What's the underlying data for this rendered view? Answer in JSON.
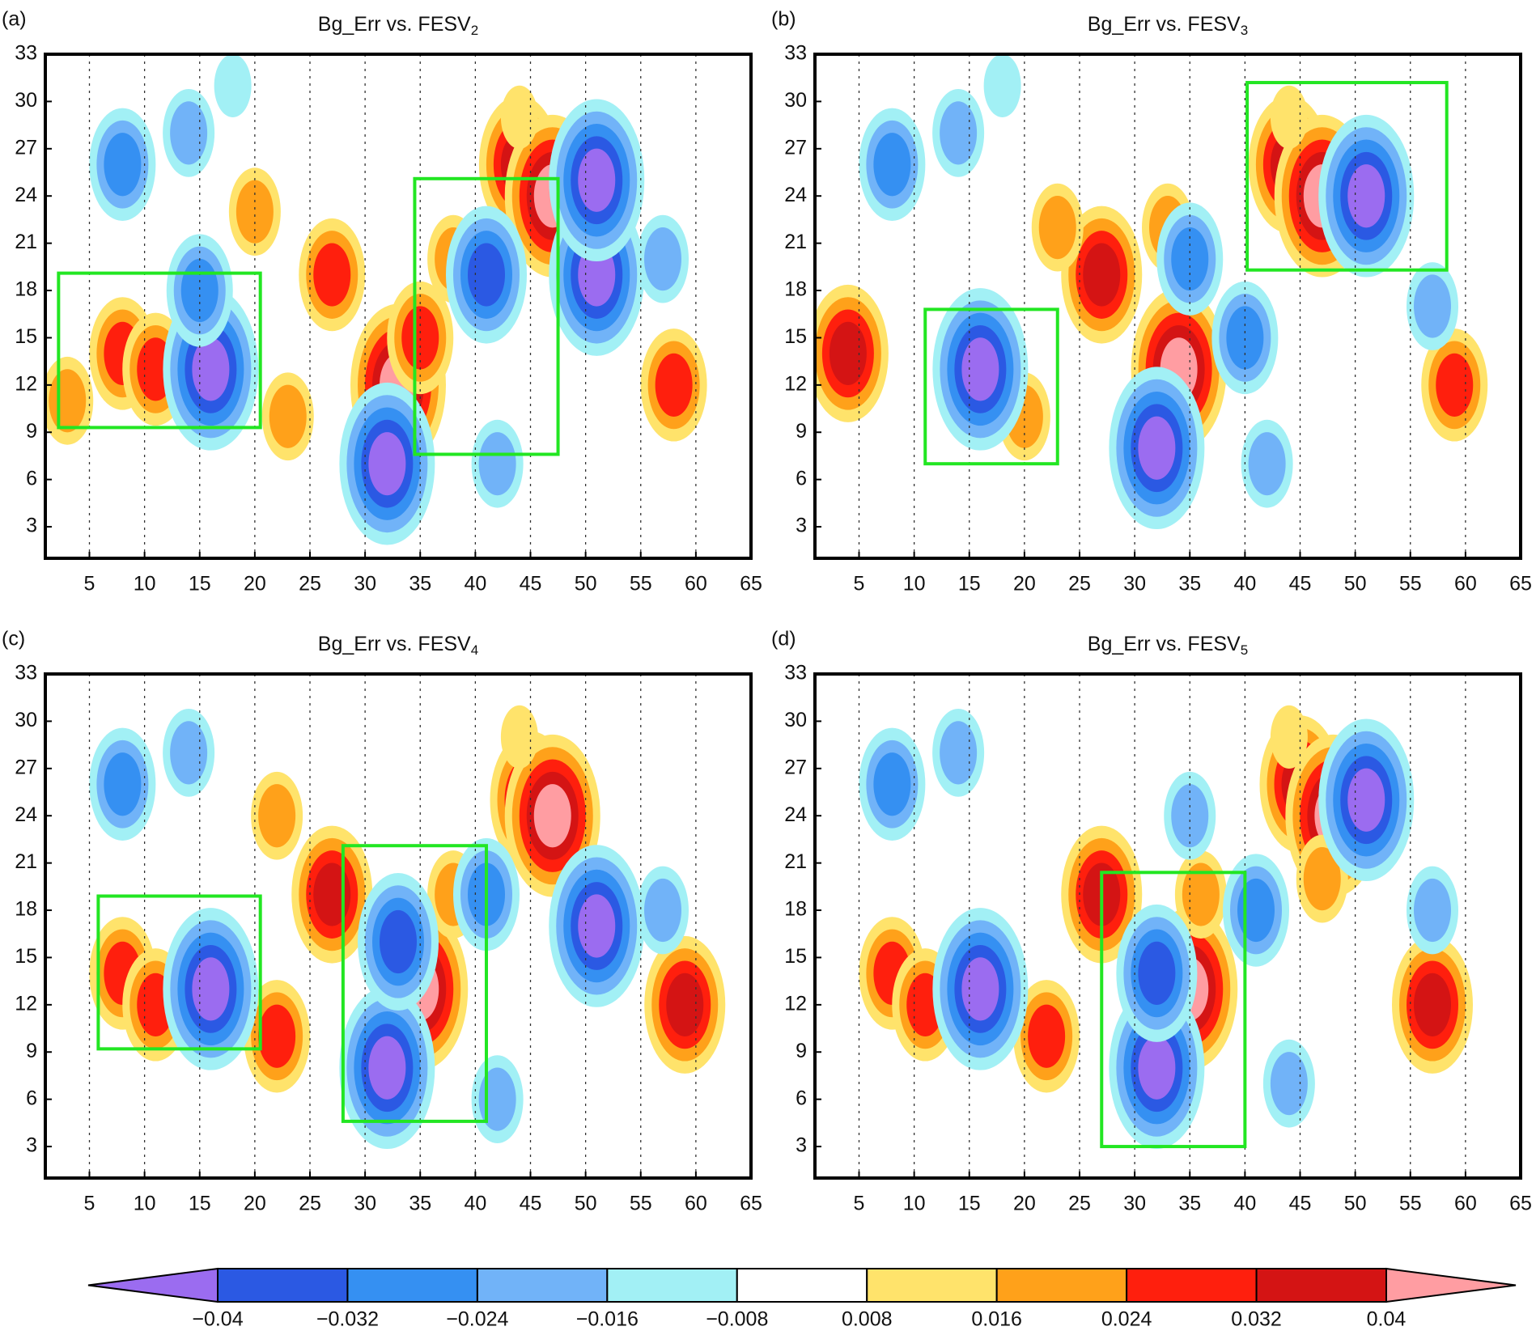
{
  "chart_data": [
    {
      "type": "contour",
      "panel_label": "(a)",
      "title": "Bg_Err vs. FESV",
      "title_subscript": "2",
      "xlim": [
        1,
        65
      ],
      "ylim": [
        1,
        33
      ],
      "xticks": [
        5,
        10,
        15,
        20,
        25,
        30,
        35,
        40,
        45,
        50,
        55,
        60,
        65
      ],
      "yticks": [
        3,
        6,
        9,
        12,
        15,
        18,
        21,
        24,
        27,
        30,
        33
      ],
      "grid": true,
      "field": [
        {
          "x": 8,
          "y": 14,
          "value": 0.028
        },
        {
          "x": 11,
          "y": 13,
          "value": 0.028
        },
        {
          "x": 27,
          "y": 19,
          "value": 0.028
        },
        {
          "x": 33,
          "y": 12,
          "value": 0.045
        },
        {
          "x": 35,
          "y": 15,
          "value": 0.028
        },
        {
          "x": 44,
          "y": 26,
          "value": 0.035
        },
        {
          "x": 47,
          "y": 24,
          "value": 0.045
        },
        {
          "x": 58,
          "y": 12,
          "value": 0.028
        },
        {
          "x": 20,
          "y": 23,
          "value": 0.02
        },
        {
          "x": 38,
          "y": 20,
          "value": 0.02
        },
        {
          "x": 44,
          "y": 29,
          "value": 0.012
        },
        {
          "x": 23,
          "y": 10,
          "value": 0.02
        },
        {
          "x": 3,
          "y": 11,
          "value": 0.02
        },
        {
          "x": 16,
          "y": 13,
          "value": -0.045
        },
        {
          "x": 15,
          "y": 18,
          "value": -0.028
        },
        {
          "x": 32,
          "y": 7,
          "value": -0.045
        },
        {
          "x": 51,
          "y": 19,
          "value": -0.045
        },
        {
          "x": 51,
          "y": 25,
          "value": -0.045
        },
        {
          "x": 41,
          "y": 19,
          "value": -0.036
        },
        {
          "x": 8,
          "y": 26,
          "value": -0.028
        },
        {
          "x": 14,
          "y": 28,
          "value": -0.02
        },
        {
          "x": 18,
          "y": 31,
          "value": -0.012
        },
        {
          "x": 57,
          "y": 20,
          "value": -0.02
        },
        {
          "x": 42,
          "y": 7,
          "value": -0.02
        }
      ],
      "boxes": [
        {
          "x": [
            2.2,
            20.5
          ],
          "y": [
            9.3,
            19.1
          ]
        },
        {
          "x": [
            34.5,
            47.5
          ],
          "y": [
            7.6,
            25.1
          ]
        }
      ],
      "box_color": "#22e622"
    },
    {
      "type": "contour",
      "panel_label": "(b)",
      "title": "Bg_Err vs. FESV",
      "title_subscript": "3",
      "xlim": [
        1,
        65
      ],
      "ylim": [
        1,
        33
      ],
      "xticks": [
        5,
        10,
        15,
        20,
        25,
        30,
        35,
        40,
        45,
        50,
        55,
        60,
        65
      ],
      "yticks": [
        3,
        6,
        9,
        12,
        15,
        18,
        21,
        24,
        27,
        30,
        33
      ],
      "grid": true,
      "field": [
        {
          "x": 4,
          "y": 14,
          "value": 0.035
        },
        {
          "x": 27,
          "y": 19,
          "value": 0.035
        },
        {
          "x": 34,
          "y": 13,
          "value": 0.045
        },
        {
          "x": 44,
          "y": 26,
          "value": 0.035
        },
        {
          "x": 47,
          "y": 24,
          "value": 0.045
        },
        {
          "x": 59,
          "y": 12,
          "value": 0.028
        },
        {
          "x": 20,
          "y": 10,
          "value": 0.02
        },
        {
          "x": 23,
          "y": 22,
          "value": 0.02
        },
        {
          "x": 33,
          "y": 22,
          "value": 0.02
        },
        {
          "x": 44,
          "y": 29,
          "value": 0.012
        },
        {
          "x": 16,
          "y": 13,
          "value": -0.045
        },
        {
          "x": 32,
          "y": 8,
          "value": -0.045
        },
        {
          "x": 51,
          "y": 24,
          "value": -0.045
        },
        {
          "x": 40,
          "y": 15,
          "value": -0.028
        },
        {
          "x": 8,
          "y": 26,
          "value": -0.028
        },
        {
          "x": 14,
          "y": 28,
          "value": -0.02
        },
        {
          "x": 18,
          "y": 31,
          "value": -0.012
        },
        {
          "x": 57,
          "y": 17,
          "value": -0.02
        },
        {
          "x": 42,
          "y": 7,
          "value": -0.02
        },
        {
          "x": 35,
          "y": 20,
          "value": -0.028
        }
      ],
      "boxes": [
        {
          "x": [
            11,
            23
          ],
          "y": [
            7,
            16.8
          ]
        },
        {
          "x": [
            40.2,
            58.3
          ],
          "y": [
            19.3,
            31.2
          ]
        }
      ],
      "box_color": "#22e622"
    },
    {
      "type": "contour",
      "panel_label": "(c)",
      "title": "Bg_Err vs. FESV",
      "title_subscript": "4",
      "xlim": [
        1,
        65
      ],
      "ylim": [
        1,
        33
      ],
      "xticks": [
        5,
        10,
        15,
        20,
        25,
        30,
        35,
        40,
        45,
        50,
        55,
        60,
        65
      ],
      "yticks": [
        3,
        6,
        9,
        12,
        15,
        18,
        21,
        24,
        27,
        30,
        33
      ],
      "grid": true,
      "field": [
        {
          "x": 8,
          "y": 14,
          "value": 0.028
        },
        {
          "x": 11,
          "y": 12,
          "value": 0.028
        },
        {
          "x": 27,
          "y": 19,
          "value": 0.035
        },
        {
          "x": 35,
          "y": 13,
          "value": 0.045
        },
        {
          "x": 45,
          "y": 25,
          "value": 0.035
        },
        {
          "x": 47,
          "y": 24,
          "value": 0.045
        },
        {
          "x": 59,
          "y": 12,
          "value": 0.035
        },
        {
          "x": 22,
          "y": 10,
          "value": 0.028
        },
        {
          "x": 22,
          "y": 24,
          "value": 0.02
        },
        {
          "x": 38,
          "y": 19,
          "value": 0.02
        },
        {
          "x": 44,
          "y": 29,
          "value": 0.012
        },
        {
          "x": 16,
          "y": 13,
          "value": -0.045
        },
        {
          "x": 32,
          "y": 8,
          "value": -0.045
        },
        {
          "x": 51,
          "y": 17,
          "value": -0.045
        },
        {
          "x": 33,
          "y": 16,
          "value": -0.036
        },
        {
          "x": 8,
          "y": 26,
          "value": -0.028
        },
        {
          "x": 14,
          "y": 28,
          "value": -0.02
        },
        {
          "x": 57,
          "y": 18,
          "value": -0.02
        },
        {
          "x": 42,
          "y": 6,
          "value": -0.02
        },
        {
          "x": 41,
          "y": 19,
          "value": -0.028
        }
      ],
      "boxes": [
        {
          "x": [
            5.8,
            20.5
          ],
          "y": [
            9.2,
            18.9
          ]
        },
        {
          "x": [
            28,
            41
          ],
          "y": [
            4.6,
            22.1
          ]
        }
      ],
      "box_color": "#22e622"
    },
    {
      "type": "contour",
      "panel_label": "(d)",
      "title": "Bg_Err vs. FESV",
      "title_subscript": "5",
      "xlim": [
        1,
        65
      ],
      "ylim": [
        1,
        33
      ],
      "xticks": [
        5,
        10,
        15,
        20,
        25,
        30,
        35,
        40,
        45,
        50,
        55,
        60,
        65
      ],
      "yticks": [
        3,
        6,
        9,
        12,
        15,
        18,
        21,
        24,
        27,
        30,
        33
      ],
      "grid": true,
      "field": [
        {
          "x": 8,
          "y": 14,
          "value": 0.028
        },
        {
          "x": 11,
          "y": 12,
          "value": 0.028
        },
        {
          "x": 27,
          "y": 19,
          "value": 0.035
        },
        {
          "x": 35,
          "y": 13,
          "value": 0.045
        },
        {
          "x": 45,
          "y": 26,
          "value": 0.035
        },
        {
          "x": 48,
          "y": 24,
          "value": 0.045
        },
        {
          "x": 57,
          "y": 12,
          "value": 0.035
        },
        {
          "x": 22,
          "y": 10,
          "value": 0.028
        },
        {
          "x": 44,
          "y": 29,
          "value": 0.012
        },
        {
          "x": 36,
          "y": 19,
          "value": 0.02
        },
        {
          "x": 47,
          "y": 20,
          "value": 0.02
        },
        {
          "x": 16,
          "y": 13,
          "value": -0.045
        },
        {
          "x": 32,
          "y": 8,
          "value": -0.045
        },
        {
          "x": 51,
          "y": 25,
          "value": -0.045
        },
        {
          "x": 32,
          "y": 14,
          "value": -0.036
        },
        {
          "x": 8,
          "y": 26,
          "value": -0.028
        },
        {
          "x": 14,
          "y": 28,
          "value": -0.02
        },
        {
          "x": 57,
          "y": 18,
          "value": -0.02
        },
        {
          "x": 44,
          "y": 7,
          "value": -0.02
        },
        {
          "x": 41,
          "y": 18,
          "value": -0.028
        },
        {
          "x": 35,
          "y": 24,
          "value": -0.02
        }
      ],
      "boxes": [
        {
          "x": [
            27,
            40
          ],
          "y": [
            3,
            20.4
          ]
        }
      ],
      "box_color": "#22e622"
    }
  ],
  "colorbar": {
    "levels": [
      {
        "value": -0.04,
        "label": "−0.04"
      },
      {
        "value": -0.032,
        "label": "−0.032"
      },
      {
        "value": -0.024,
        "label": "−0.024"
      },
      {
        "value": -0.016,
        "label": "−0.016"
      },
      {
        "value": -0.008,
        "label": "−0.008"
      },
      0.008,
      0.016,
      0.024,
      0.032,
      0.04
    ],
    "colors": [
      "#9b6cf0",
      "#2b59e3",
      "#3590f2",
      "#71b3f8",
      "#a2f0f5",
      "#ffffff",
      "#ffe36b",
      "#ffa11a",
      "#ff1f0d",
      "#d41414",
      "#ff9da2"
    ]
  }
}
